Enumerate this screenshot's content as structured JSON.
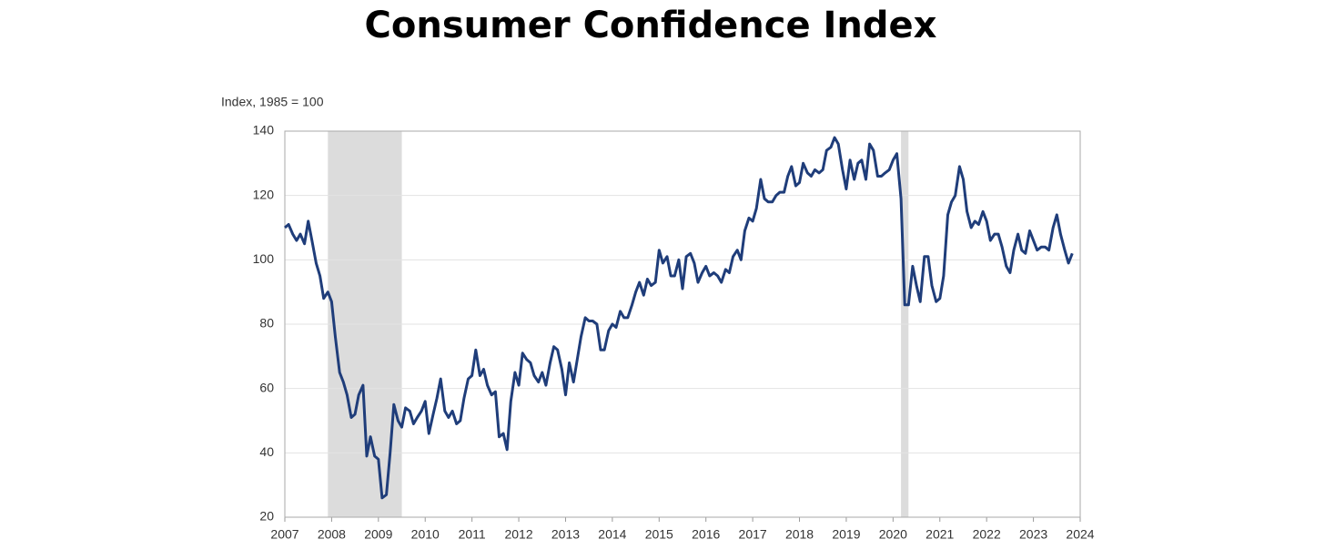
{
  "chart_data": {
    "type": "line",
    "title": "Consumer Confidence Index",
    "ylabel": "Index, 1985 = 100",
    "color": "#1f3d7a",
    "recession_color": "#dcdcdc",
    "grid": true,
    "xlim": [
      2007,
      2024
    ],
    "xticks": [
      2007,
      2008,
      2009,
      2010,
      2011,
      2012,
      2013,
      2014,
      2015,
      2016,
      2017,
      2018,
      2019,
      2020,
      2021,
      2022,
      2023,
      2024
    ],
    "ylim": [
      20,
      140
    ],
    "yticks": [
      20,
      40,
      60,
      80,
      100,
      120,
      140
    ],
    "recessions": [
      [
        2007.92,
        2009.5
      ],
      [
        2020.17,
        2020.33
      ]
    ],
    "x": [
      2007.0,
      2007.08,
      2007.17,
      2007.25,
      2007.33,
      2007.42,
      2007.5,
      2007.58,
      2007.67,
      2007.75,
      2007.83,
      2007.92,
      2008.0,
      2008.08,
      2008.17,
      2008.25,
      2008.33,
      2008.42,
      2008.5,
      2008.58,
      2008.67,
      2008.75,
      2008.83,
      2008.92,
      2009.0,
      2009.08,
      2009.17,
      2009.25,
      2009.33,
      2009.42,
      2009.5,
      2009.58,
      2009.67,
      2009.75,
      2009.83,
      2009.92,
      2010.0,
      2010.08,
      2010.17,
      2010.25,
      2010.33,
      2010.42,
      2010.5,
      2010.58,
      2010.67,
      2010.75,
      2010.83,
      2010.92,
      2011.0,
      2011.08,
      2011.17,
      2011.25,
      2011.33,
      2011.42,
      2011.5,
      2011.58,
      2011.67,
      2011.75,
      2011.83,
      2011.92,
      2012.0,
      2012.08,
      2012.17,
      2012.25,
      2012.33,
      2012.42,
      2012.5,
      2012.58,
      2012.67,
      2012.75,
      2012.83,
      2012.92,
      2013.0,
      2013.08,
      2013.17,
      2013.25,
      2013.33,
      2013.42,
      2013.5,
      2013.58,
      2013.67,
      2013.75,
      2013.83,
      2013.92,
      2014.0,
      2014.08,
      2014.17,
      2014.25,
      2014.33,
      2014.42,
      2014.5,
      2014.58,
      2014.67,
      2014.75,
      2014.83,
      2014.92,
      2015.0,
      2015.08,
      2015.17,
      2015.25,
      2015.33,
      2015.42,
      2015.5,
      2015.58,
      2015.67,
      2015.75,
      2015.83,
      2015.92,
      2016.0,
      2016.08,
      2016.17,
      2016.25,
      2016.33,
      2016.42,
      2016.5,
      2016.58,
      2016.67,
      2016.75,
      2016.83,
      2016.92,
      2017.0,
      2017.08,
      2017.17,
      2017.25,
      2017.33,
      2017.42,
      2017.5,
      2017.58,
      2017.67,
      2017.75,
      2017.83,
      2017.92,
      2018.0,
      2018.08,
      2018.17,
      2018.25,
      2018.33,
      2018.42,
      2018.5,
      2018.58,
      2018.67,
      2018.75,
      2018.83,
      2018.92,
      2019.0,
      2019.08,
      2019.17,
      2019.25,
      2019.33,
      2019.42,
      2019.5,
      2019.58,
      2019.67,
      2019.75,
      2019.83,
      2019.92,
      2020.0,
      2020.08,
      2020.17,
      2020.25,
      2020.33,
      2020.42,
      2020.5,
      2020.58,
      2020.67,
      2020.75,
      2020.83,
      2020.92,
      2021.0,
      2021.08,
      2021.17,
      2021.25,
      2021.33,
      2021.42,
      2021.5,
      2021.58,
      2021.67,
      2021.75,
      2021.83,
      2021.92,
      2022.0,
      2022.08,
      2022.17,
      2022.25,
      2022.33,
      2022.42,
      2022.5,
      2022.58,
      2022.67,
      2022.75,
      2022.83,
      2022.92,
      2023.0,
      2023.08,
      2023.17,
      2023.25,
      2023.33,
      2023.42,
      2023.5,
      2023.58,
      2023.67,
      2023.75,
      2023.83
    ],
    "values": [
      110,
      111,
      108,
      106,
      108,
      105,
      112,
      106,
      99,
      95,
      88,
      90,
      87,
      76,
      65,
      62,
      58,
      51,
      52,
      58,
      61,
      39,
      45,
      39,
      38,
      26,
      27,
      40,
      55,
      50,
      48,
      54,
      53,
      49,
      51,
      53,
      56,
      46,
      52,
      57,
      63,
      53,
      51,
      53,
      49,
      50,
      57,
      63,
      64,
      72,
      64,
      66,
      61,
      58,
      59,
      45,
      46,
      41,
      56,
      65,
      61,
      71,
      69,
      68,
      64,
      62,
      65,
      61,
      68,
      73,
      72,
      66,
      58,
      68,
      62,
      69,
      76,
      82,
      81,
      81,
      80,
      72,
      72,
      78,
      80,
      79,
      84,
      82,
      82,
      86,
      90,
      93,
      89,
      94,
      92,
      93,
      103,
      99,
      101,
      95,
      95,
      100,
      91,
      101,
      102,
      99,
      93,
      96,
      98,
      95,
      96,
      95,
      93,
      97,
      96,
      101,
      103,
      100,
      109,
      113,
      112,
      116,
      125,
      119,
      118,
      118,
      120,
      121,
      121,
      126,
      129,
      123,
      124,
      130,
      127,
      126,
      128,
      127,
      128,
      134,
      135,
      138,
      136,
      128,
      122,
      131,
      125,
      130,
      131,
      125,
      136,
      134,
      126,
      126,
      127,
      128,
      131,
      133,
      119,
      86,
      86,
      98,
      92,
      87,
      101,
      101,
      92,
      87,
      88,
      95,
      114,
      118,
      120,
      129,
      125,
      115,
      110,
      112,
      111,
      115,
      112,
      106,
      108,
      108,
      104,
      98,
      96,
      103,
      108,
      103,
      102,
      109,
      106,
      103,
      104,
      104,
      103,
      110,
      114,
      108,
      103,
      99,
      102
    ]
  }
}
